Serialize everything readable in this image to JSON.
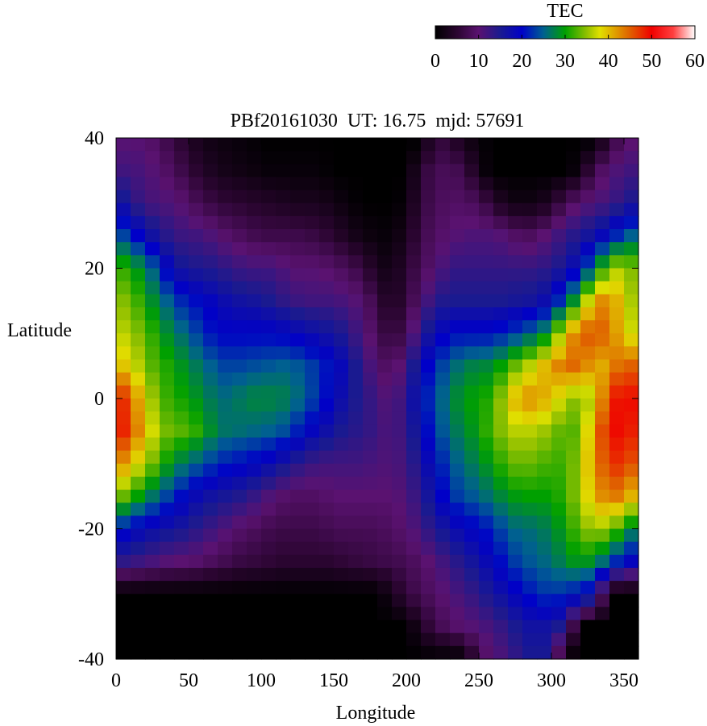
{
  "chart_data": {
    "type": "heatmap",
    "title": "PBf20161030  UT: 16.75  mjd: 57691",
    "xlabel": "Longitude",
    "ylabel": "Latitude",
    "xlim": [
      0,
      360
    ],
    "ylim": [
      -40,
      40
    ],
    "xticks": [
      0,
      50,
      100,
      150,
      200,
      250,
      300,
      350
    ],
    "yticks": [
      -40,
      -20,
      0,
      20,
      40
    ],
    "colorbar": {
      "label": "TEC",
      "range": [
        0,
        60
      ],
      "ticks": [
        0,
        10,
        20,
        30,
        40,
        50,
        60
      ],
      "stops": [
        {
          "value": 0,
          "color": "#000000"
        },
        {
          "value": 5,
          "color": "#2a0530"
        },
        {
          "value": 10,
          "color": "#5a1270"
        },
        {
          "value": 15,
          "color": "#1a1a90"
        },
        {
          "value": 20,
          "color": "#0000c8"
        },
        {
          "value": 25,
          "color": "#006090"
        },
        {
          "value": 30,
          "color": "#00a000"
        },
        {
          "value": 35,
          "color": "#90c000"
        },
        {
          "value": 38,
          "color": "#e0e000"
        },
        {
          "value": 45,
          "color": "#e06000"
        },
        {
          "value": 50,
          "color": "#f00000"
        },
        {
          "value": 55,
          "color": "#ff4040"
        },
        {
          "value": 60,
          "color": "#ffffff"
        }
      ]
    },
    "lon": [
      0,
      10,
      20,
      30,
      40,
      50,
      60,
      70,
      80,
      90,
      100,
      110,
      120,
      130,
      140,
      150,
      160,
      170,
      180,
      190,
      200,
      210,
      220,
      230,
      240,
      250,
      260,
      270,
      280,
      290,
      300,
      310,
      320,
      330,
      340,
      350,
      360
    ],
    "lat": [
      40,
      35,
      30,
      25,
      20,
      15,
      10,
      5,
      0,
      -5,
      -10,
      -15,
      -20,
      -25,
      -30,
      -35,
      -40
    ],
    "values": [
      [
        10,
        10,
        10,
        8,
        6,
        4,
        2,
        2,
        1,
        1,
        0,
        0,
        0,
        0,
        0,
        0,
        0,
        0,
        0,
        0,
        0,
        0,
        6,
        5,
        2,
        1,
        0,
        0,
        0,
        0,
        0,
        0,
        0,
        0,
        5,
        9,
        10
      ],
      [
        12,
        12,
        11,
        10,
        8,
        6,
        4,
        3,
        2,
        2,
        1,
        1,
        1,
        1,
        1,
        0,
        0,
        0,
        0,
        0,
        0,
        5,
        8,
        8,
        7,
        2,
        0,
        0,
        0,
        0,
        0,
        0,
        2,
        8,
        10,
        12,
        12
      ],
      [
        18,
        14,
        12,
        11,
        11,
        9,
        7,
        6,
        5,
        5,
        4,
        4,
        3,
        3,
        3,
        2,
        1,
        0,
        0,
        0,
        1,
        6,
        8,
        9,
        9,
        8,
        5,
        2,
        2,
        2,
        4,
        8,
        10,
        11,
        12,
        14,
        16
      ],
      [
        25,
        22,
        18,
        15,
        13,
        12,
        12,
        10,
        9,
        8,
        7,
        7,
        7,
        7,
        6,
        5,
        3,
        2,
        1,
        1,
        3,
        7,
        9,
        10,
        11,
        11,
        11,
        10,
        8,
        9,
        11,
        13,
        15,
        17,
        20,
        24,
        26
      ],
      [
        33,
        30,
        28,
        22,
        17,
        15,
        15,
        14,
        13,
        12,
        12,
        12,
        10,
        10,
        10,
        9,
        8,
        6,
        3,
        2,
        5,
        8,
        10,
        13,
        13,
        13,
        13,
        13,
        13,
        13,
        14,
        16,
        20,
        27,
        35,
        37,
        32
      ],
      [
        35,
        34,
        30,
        27,
        23,
        21,
        20,
        18,
        17,
        16,
        16,
        14,
        13,
        12,
        12,
        12,
        11,
        10,
        6,
        3,
        6,
        10,
        14,
        15,
        15,
        15,
        15,
        15,
        16,
        16,
        19,
        25,
        32,
        42,
        43,
        38,
        34
      ],
      [
        37,
        36,
        33,
        30,
        27,
        25,
        22,
        20,
        20,
        20,
        20,
        20,
        19,
        18,
        17,
        16,
        14,
        11,
        8,
        5,
        8,
        14,
        18,
        20,
        21,
        20,
        21,
        22,
        24,
        26,
        30,
        40,
        45,
        46,
        44,
        39,
        36
      ],
      [
        40,
        39,
        34,
        32,
        30,
        28,
        26,
        24,
        23,
        24,
        24,
        25,
        25,
        24,
        22,
        20,
        17,
        13,
        10,
        8,
        12,
        18,
        22,
        25,
        27,
        28,
        28,
        32,
        35,
        38,
        42,
        44,
        45,
        40,
        42,
        46,
        44
      ],
      [
        50,
        45,
        38,
        33,
        31,
        30,
        28,
        26,
        26,
        28,
        28,
        28,
        27,
        25,
        22,
        19,
        16,
        14,
        12,
        10,
        14,
        20,
        24,
        27,
        30,
        30,
        32,
        38,
        43,
        42,
        40,
        36,
        34,
        38,
        48,
        50,
        49
      ],
      [
        50,
        46,
        40,
        35,
        33,
        33,
        30,
        27,
        26,
        26,
        25,
        25,
        23,
        20,
        18,
        16,
        14,
        14,
        12,
        11,
        13,
        18,
        23,
        26,
        28,
        30,
        33,
        36,
        37,
        36,
        35,
        32,
        34,
        43,
        49,
        50,
        47
      ],
      [
        44,
        40,
        36,
        32,
        28,
        26,
        24,
        22,
        21,
        20,
        19,
        17,
        15,
        13,
        12,
        12,
        12,
        12,
        11,
        11,
        12,
        16,
        20,
        24,
        26,
        28,
        30,
        33,
        34,
        33,
        32,
        32,
        36,
        43,
        47,
        48,
        44
      ],
      [
        35,
        32,
        28,
        25,
        22,
        19,
        17,
        16,
        15,
        14,
        12,
        10,
        9,
        9,
        9,
        10,
        10,
        10,
        10,
        10,
        11,
        14,
        18,
        22,
        24,
        25,
        27,
        29,
        30,
        30,
        30,
        32,
        36,
        41,
        44,
        43,
        38
      ],
      [
        22,
        20,
        18,
        17,
        16,
        15,
        13,
        12,
        10,
        9,
        8,
        7,
        7,
        7,
        7,
        8,
        8,
        8,
        8,
        9,
        10,
        12,
        15,
        17,
        19,
        20,
        22,
        25,
        26,
        26,
        28,
        30,
        34,
        36,
        35,
        30,
        26
      ],
      [
        14,
        13,
        12,
        11,
        10,
        10,
        9,
        8,
        7,
        6,
        6,
        5,
        5,
        5,
        5,
        5,
        6,
        6,
        7,
        7,
        8,
        9,
        11,
        13,
        15,
        17,
        19,
        22,
        24,
        25,
        26,
        28,
        30,
        28,
        24,
        20,
        18
      ],
      [
        0,
        0,
        0,
        0,
        0,
        0,
        0,
        0,
        0,
        0,
        0,
        0,
        0,
        0,
        0,
        0,
        0,
        0,
        0,
        3,
        6,
        8,
        9,
        11,
        12,
        14,
        16,
        18,
        20,
        22,
        23,
        22,
        20,
        18,
        0,
        0,
        0
      ],
      [
        0,
        0,
        0,
        0,
        0,
        0,
        0,
        0,
        0,
        0,
        0,
        0,
        0,
        0,
        0,
        0,
        0,
        0,
        0,
        0,
        0,
        4,
        7,
        9,
        10,
        11,
        12,
        14,
        16,
        17,
        16,
        14,
        0,
        0,
        0,
        0,
        0
      ],
      [
        0,
        0,
        0,
        0,
        0,
        0,
        0,
        0,
        0,
        0,
        0,
        0,
        0,
        0,
        0,
        0,
        0,
        0,
        0,
        0,
        0,
        0,
        0,
        0,
        0,
        8,
        10,
        12,
        14,
        16,
        14,
        0,
        0,
        0,
        0,
        0,
        0
      ]
    ]
  }
}
